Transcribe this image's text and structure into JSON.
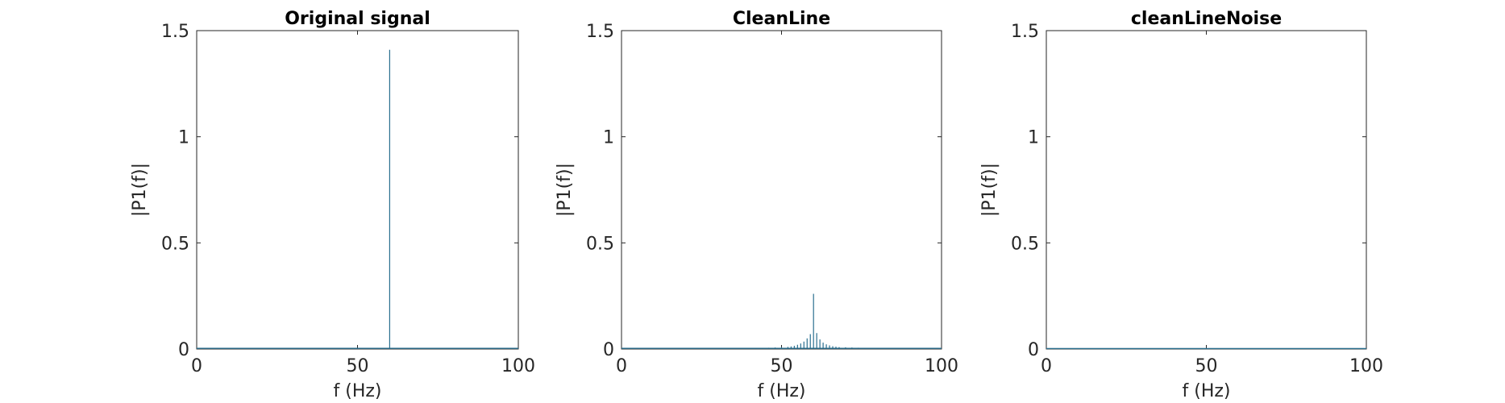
{
  "figure": {
    "line_color": "#2a6f8f",
    "axis_color": "#262626"
  },
  "chart_data": [
    {
      "type": "line",
      "title": "Original signal",
      "xlabel": "f (Hz)",
      "ylabel": "|P1(f)|",
      "xlim": [
        0,
        100
      ],
      "ylim": [
        0,
        1.5
      ],
      "xticks": [
        0,
        50,
        100
      ],
      "yticks": [
        0,
        0.5,
        1,
        1.5
      ],
      "xtick_labels": [
        "0",
        "50",
        "100"
      ],
      "ytick_labels": [
        "0",
        "0.5",
        "1",
        "1.5"
      ],
      "grid": false,
      "baseline": 0.003,
      "x": [
        60
      ],
      "y": [
        1.41
      ]
    },
    {
      "type": "line",
      "title": "CleanLine",
      "xlabel": "f (Hz)",
      "ylabel": "|P1(f)|",
      "xlim": [
        0,
        100
      ],
      "ylim": [
        0,
        1.5
      ],
      "xticks": [
        0,
        50,
        100
      ],
      "yticks": [
        0,
        0.5,
        1,
        1.5
      ],
      "xtick_labels": [
        "0",
        "50",
        "100"
      ],
      "ytick_labels": [
        "0",
        "0.5",
        "1",
        "1.5"
      ],
      "grid": false,
      "baseline": 0.003,
      "x": [
        42,
        44,
        46,
        48,
        50,
        52,
        53,
        54,
        55,
        56,
        57,
        58,
        59,
        60,
        61,
        62,
        63,
        64,
        65,
        66,
        67,
        68,
        70,
        72,
        74,
        76,
        78,
        80
      ],
      "y": [
        0.004,
        0.005,
        0.006,
        0.007,
        0.008,
        0.01,
        0.012,
        0.015,
        0.02,
        0.026,
        0.035,
        0.05,
        0.07,
        0.26,
        0.075,
        0.045,
        0.03,
        0.022,
        0.017,
        0.013,
        0.011,
        0.009,
        0.008,
        0.007,
        0.006,
        0.005,
        0.004,
        0.004
      ]
    },
    {
      "type": "line",
      "title": "cleanLineNoise",
      "xlabel": "f (Hz)",
      "ylabel": "|P1(f)|",
      "xlim": [
        0,
        100
      ],
      "ylim": [
        0,
        1.5
      ],
      "xticks": [
        0,
        50,
        100
      ],
      "yticks": [
        0,
        0.5,
        1,
        1.5
      ],
      "xtick_labels": [
        "0",
        "50",
        "100"
      ],
      "ytick_labels": [
        "0",
        "0.5",
        "1",
        "1.5"
      ],
      "grid": false,
      "baseline": 0.002,
      "x": [],
      "y": []
    }
  ]
}
